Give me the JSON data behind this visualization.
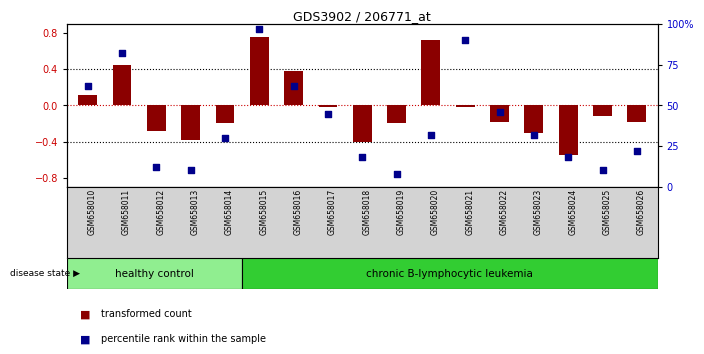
{
  "title": "GDS3902 / 206771_at",
  "samples": [
    "GSM658010",
    "GSM658011",
    "GSM658012",
    "GSM658013",
    "GSM658014",
    "GSM658015",
    "GSM658016",
    "GSM658017",
    "GSM658018",
    "GSM658019",
    "GSM658020",
    "GSM658021",
    "GSM658022",
    "GSM658023",
    "GSM658024",
    "GSM658025",
    "GSM658026"
  ],
  "bar_values": [
    0.12,
    0.45,
    -0.28,
    -0.38,
    -0.2,
    0.76,
    0.38,
    -0.02,
    -0.4,
    -0.2,
    0.72,
    -0.02,
    -0.18,
    -0.3,
    -0.55,
    -0.12,
    -0.18
  ],
  "percentile_values": [
    62,
    82,
    12,
    10,
    30,
    97,
    62,
    45,
    18,
    8,
    32,
    90,
    46,
    32,
    18,
    10,
    22
  ],
  "healthy_count": 5,
  "bar_color": "#8B0000",
  "point_color": "#00008B",
  "left_ylim": [
    -0.9,
    0.9
  ],
  "left_yticks": [
    -0.8,
    -0.4,
    0.0,
    0.4,
    0.8
  ],
  "right_ylim": [
    0,
    100
  ],
  "right_yticks": [
    0,
    25,
    50,
    75,
    100
  ],
  "right_yticklabels": [
    "0",
    "25",
    "50",
    "75",
    "100%"
  ],
  "background_color": "#ffffff",
  "healthy_color": "#90EE90",
  "leukemia_color": "#32CD32",
  "sample_bg": "#d3d3d3",
  "label_healthy": "healthy control",
  "label_leukemia": "chronic B-lymphocytic leukemia",
  "label_disease": "disease state",
  "legend_bar": "transformed count",
  "legend_point": "percentile rank within the sample",
  "tick_color_left": "#cc0000",
  "tick_color_right": "#0000cc"
}
